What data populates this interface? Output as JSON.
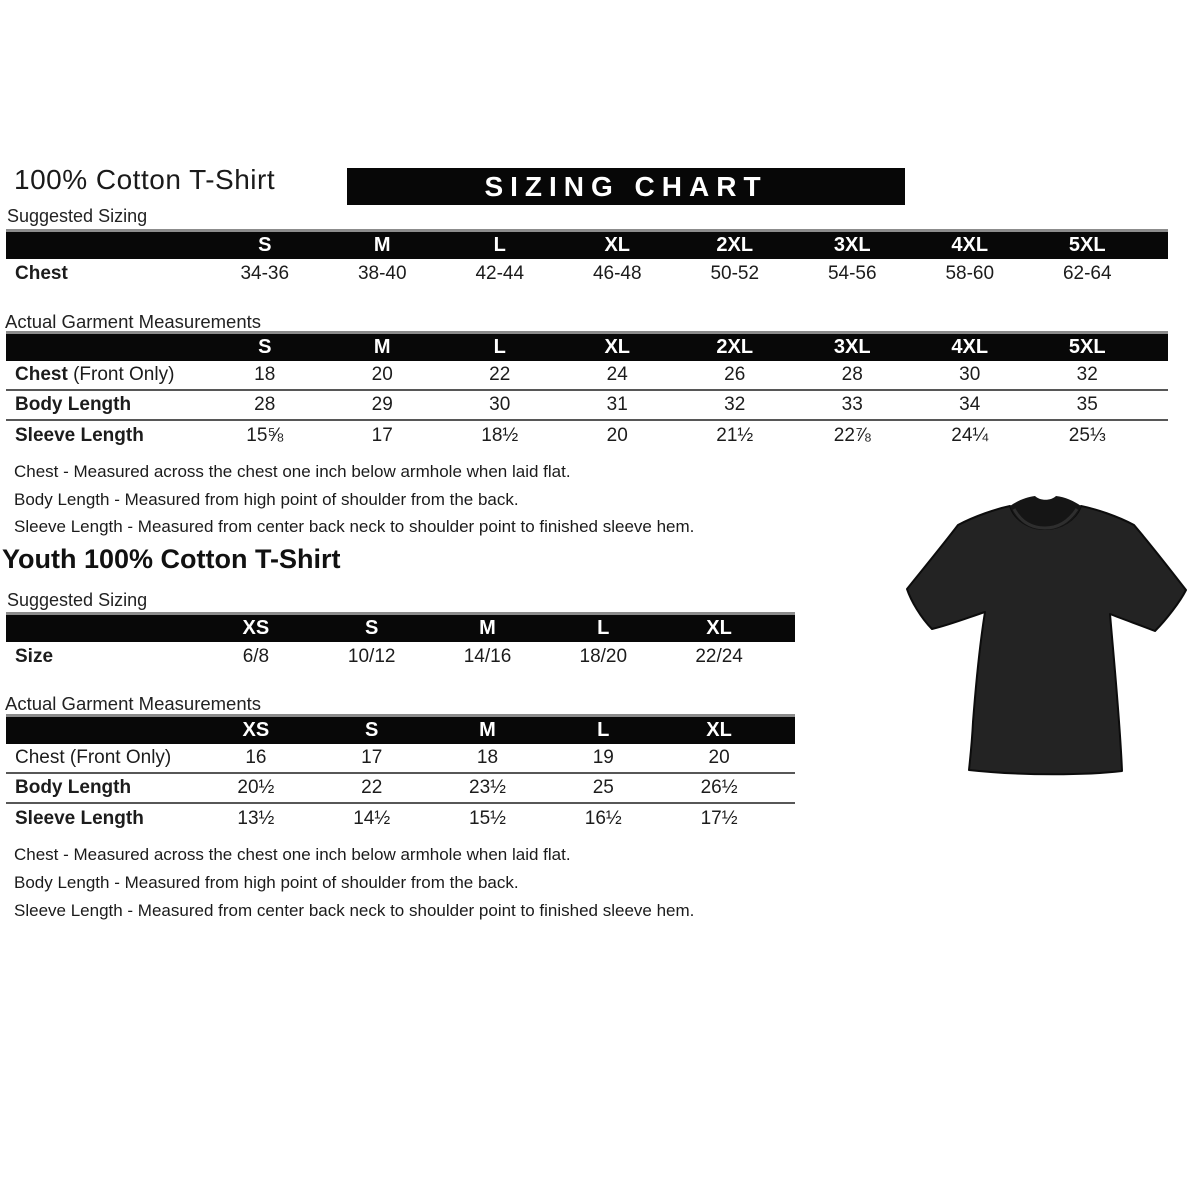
{
  "header": {
    "title": "100% Cotton T-Shirt",
    "banner": "SIZING CHART"
  },
  "adult": {
    "suggested_label": "Suggested Sizing",
    "actual_label": "Actual Garment Measurements",
    "suggested": {
      "columns": [
        "S",
        "M",
        "L",
        "XL",
        "2XL",
        "3XL",
        "4XL",
        "5XL"
      ],
      "rows": [
        {
          "label": "Chest",
          "suffix": "",
          "label_bold": true,
          "values": [
            "34-36",
            "38-40",
            "42-44",
            "46-48",
            "50-52",
            "54-56",
            "58-60",
            "62-64"
          ]
        }
      ]
    },
    "actual": {
      "columns": [
        "S",
        "M",
        "L",
        "XL",
        "2XL",
        "3XL",
        "4XL",
        "5XL"
      ],
      "rows": [
        {
          "label": "Chest",
          "suffix": " (Front Only)",
          "label_bold": true,
          "values": [
            "18",
            "20",
            "22",
            "24",
            "26",
            "28",
            "30",
            "32"
          ]
        },
        {
          "label": "Body Length",
          "suffix": "",
          "label_bold": true,
          "values": [
            "28",
            "29",
            "30",
            "31",
            "32",
            "33",
            "34",
            "35"
          ]
        },
        {
          "label": "Sleeve Length",
          "suffix": "",
          "label_bold": true,
          "values": [
            "15⅝",
            "17",
            "18½",
            "20",
            "21½",
            "22⅞",
            "24¼",
            "25⅓"
          ]
        }
      ]
    },
    "notes": [
      "Chest - Measured across the chest one inch below armhole when laid flat.",
      "Body Length - Measured from high point of shoulder from the back.",
      "Sleeve Length - Measured from center back neck to shoulder point to finished sleeve hem."
    ]
  },
  "youth": {
    "title": "Youth 100% Cotton T-Shirt",
    "suggested_label": "Suggested Sizing",
    "actual_label": "Actual Garment Measurements",
    "suggested": {
      "columns": [
        "XS",
        "S",
        "M",
        "L",
        "XL"
      ],
      "rows": [
        {
          "label": "Size",
          "suffix": "",
          "label_bold": true,
          "values": [
            "6/8",
            "10/12",
            "14/16",
            "18/20",
            "22/24"
          ]
        }
      ]
    },
    "actual": {
      "columns": [
        "XS",
        "S",
        "M",
        "L",
        "XL"
      ],
      "rows": [
        {
          "label": "Chest (Front Only)",
          "suffix": "",
          "label_bold": false,
          "values": [
            "16",
            "17",
            "18",
            "19",
            "20"
          ]
        },
        {
          "label": "Body Length",
          "suffix": "",
          "label_bold": true,
          "values": [
            "20½",
            "22",
            "23½",
            "25",
            "26½"
          ]
        },
        {
          "label": "Sleeve Length",
          "suffix": "",
          "label_bold": true,
          "values": [
            "13½",
            "14½",
            "15½",
            "16½",
            "17½"
          ]
        }
      ]
    },
    "notes": [
      "Chest - Measured across the chest one inch below armhole when laid flat.",
      "Body Length - Measured from high point of shoulder from the back.",
      "Sleeve Length - Measured from center back neck to shoulder point to finished sleeve hem."
    ]
  },
  "tshirt": {
    "color": "#232323",
    "collar_color": "#151515",
    "outline": "#0c0c0c"
  },
  "table_theme": {
    "header_bg": "#080808",
    "header_text": "#ffffff",
    "separator": "#575757",
    "topline": "#8c8c8c"
  }
}
